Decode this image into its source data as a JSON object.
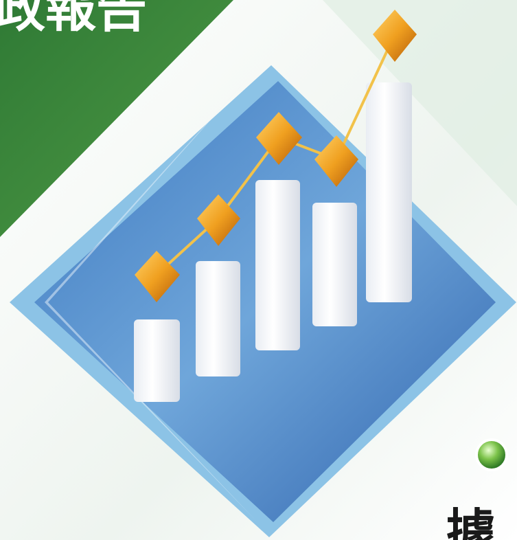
{
  "header": {
    "title": "政報告"
  },
  "footer": {
    "heading": "據"
  }
}
